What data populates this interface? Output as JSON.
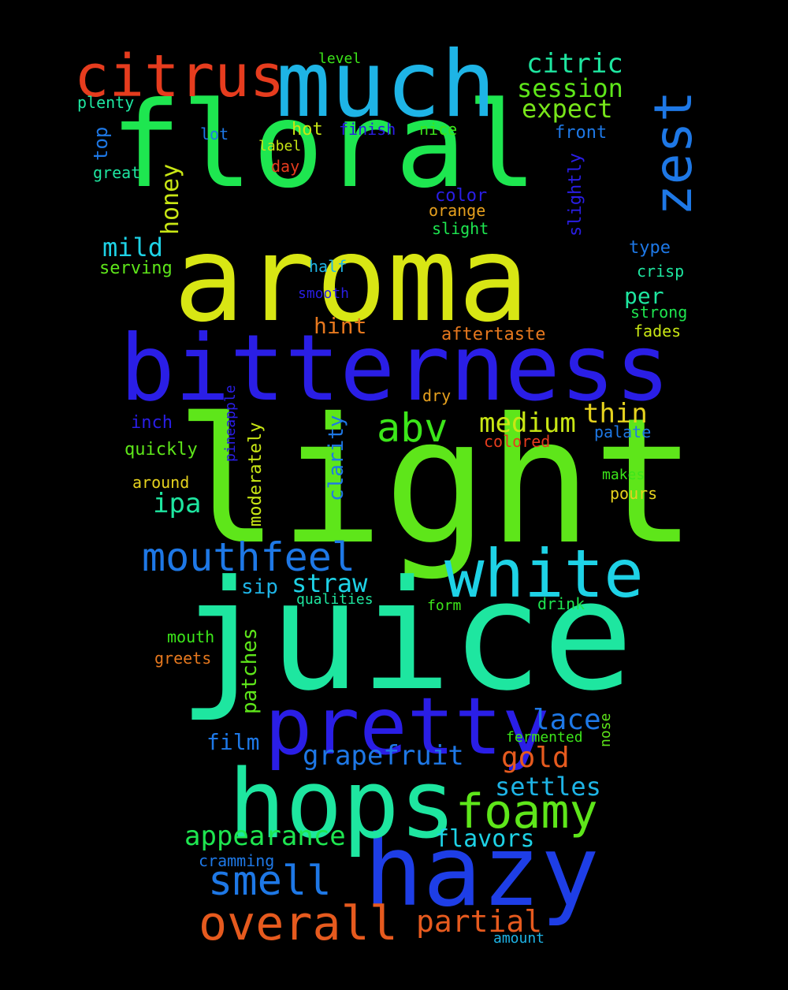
{
  "words": [
    {
      "text": "light",
      "color": "#5ee61a"
    },
    {
      "text": "juice",
      "color": "#1ee6a0"
    },
    {
      "text": "aroma",
      "color": "#d8e614"
    },
    {
      "text": "floral",
      "color": "#1ee650"
    },
    {
      "text": "bitterness",
      "color": "#2a1ee6"
    },
    {
      "text": "hazy",
      "color": "#1e3ee6"
    },
    {
      "text": "much",
      "color": "#1eb4e6"
    },
    {
      "text": "hops",
      "color": "#1ee6a0"
    },
    {
      "text": "pretty",
      "color": "#2a1ee6"
    },
    {
      "text": "white",
      "color": "#1ed2e6"
    },
    {
      "text": "citrus",
      "color": "#e63c1e"
    },
    {
      "text": "zest",
      "color": "#1e78e6"
    },
    {
      "text": "overall",
      "color": "#e65a1e"
    },
    {
      "text": "foamy",
      "color": "#5ee61a"
    },
    {
      "text": "mouthfeel",
      "color": "#1e78e6"
    },
    {
      "text": "smell",
      "color": "#1e78e6"
    },
    {
      "text": "abv",
      "color": "#3ce61a"
    },
    {
      "text": "grapefruit",
      "color": "#1e78e6"
    },
    {
      "text": "appearance",
      "color": "#1ee650"
    },
    {
      "text": "partial",
      "color": "#e65a1e"
    },
    {
      "text": "medium",
      "color": "#c8e614"
    },
    {
      "text": "thin",
      "color": "#e6d21e"
    },
    {
      "text": "straw",
      "color": "#1ed2e6"
    },
    {
      "text": "lace",
      "color": "#1e78e6"
    },
    {
      "text": "gold",
      "color": "#e65a1e"
    },
    {
      "text": "settles",
      "color": "#1eb4e6"
    },
    {
      "text": "flavors",
      "color": "#1ed2e6"
    },
    {
      "text": "citric",
      "color": "#1ee6a0"
    },
    {
      "text": "session",
      "color": "#5ee61a"
    },
    {
      "text": "expect",
      "color": "#78e61a"
    },
    {
      "text": "mild",
      "color": "#1ed2e6"
    },
    {
      "text": "ipa",
      "color": "#1ee6a0"
    },
    {
      "text": "honey",
      "color": "#c8e614"
    },
    {
      "text": "hint",
      "color": "#e6781e"
    },
    {
      "text": "per",
      "color": "#1ee6a0"
    },
    {
      "text": "film",
      "color": "#1e78e6"
    },
    {
      "text": "sip",
      "color": "#1eb4e6"
    },
    {
      "text": "patches",
      "color": "#5ee61a"
    },
    {
      "text": "clarity",
      "color": "#1e78e6"
    },
    {
      "text": "moderately",
      "color": "#c8e614"
    },
    {
      "text": "slightly",
      "color": "#2a1ee6"
    },
    {
      "text": "quickly",
      "color": "#5ee61a"
    },
    {
      "text": "hot",
      "color": "#c8e614"
    },
    {
      "text": "front",
      "color": "#1e78e6"
    },
    {
      "text": "top",
      "color": "#1e78e6"
    },
    {
      "text": "aftertaste",
      "color": "#e6781e"
    },
    {
      "text": "serving",
      "color": "#5ee61a"
    },
    {
      "text": "color",
      "color": "#2a1ee6"
    },
    {
      "text": "cramming",
      "color": "#1e78e6"
    },
    {
      "text": "plenty",
      "color": "#1ee6a0"
    },
    {
      "text": "level",
      "color": "#3ce61a"
    },
    {
      "text": "lot",
      "color": "#1e78e6"
    },
    {
      "text": "label",
      "color": "#c8e614"
    },
    {
      "text": "finish",
      "color": "#2a1ee6"
    },
    {
      "text": "nice",
      "color": "#3ce61a"
    },
    {
      "text": "great",
      "color": "#1ee6a0"
    },
    {
      "text": "day",
      "color": "#e63c1e"
    },
    {
      "text": "orange",
      "color": "#e6a01e"
    },
    {
      "text": "slight",
      "color": "#1ee650"
    },
    {
      "text": "type",
      "color": "#1e78e6"
    },
    {
      "text": "half",
      "color": "#1eb4e6"
    },
    {
      "text": "crisp",
      "color": "#1ee6a0"
    },
    {
      "text": "smooth",
      "color": "#2a1ee6"
    },
    {
      "text": "strong",
      "color": "#1ee650"
    },
    {
      "text": "fades",
      "color": "#c8e614"
    },
    {
      "text": "dry",
      "color": "#e6a01e"
    },
    {
      "text": "pineapple",
      "color": "#2a1ee6"
    },
    {
      "text": "inch",
      "color": "#2a1ee6"
    },
    {
      "text": "palate",
      "color": "#1e78e6"
    },
    {
      "text": "colored",
      "color": "#e63c1e"
    },
    {
      "text": "around",
      "color": "#e6d21e"
    },
    {
      "text": "makes",
      "color": "#3ce61a"
    },
    {
      "text": "pours",
      "color": "#e6d21e"
    },
    {
      "text": "qualities",
      "color": "#1ee6a0"
    },
    {
      "text": "form",
      "color": "#3ce61a"
    },
    {
      "text": "drink",
      "color": "#1ee650"
    },
    {
      "text": "mouth",
      "color": "#3ce61a"
    },
    {
      "text": "greets",
      "color": "#e6781e"
    },
    {
      "text": "fermented",
      "color": "#3ce61a"
    },
    {
      "text": "nose",
      "color": "#5ee61a"
    },
    {
      "text": "amount",
      "color": "#1eb4e6"
    }
  ]
}
